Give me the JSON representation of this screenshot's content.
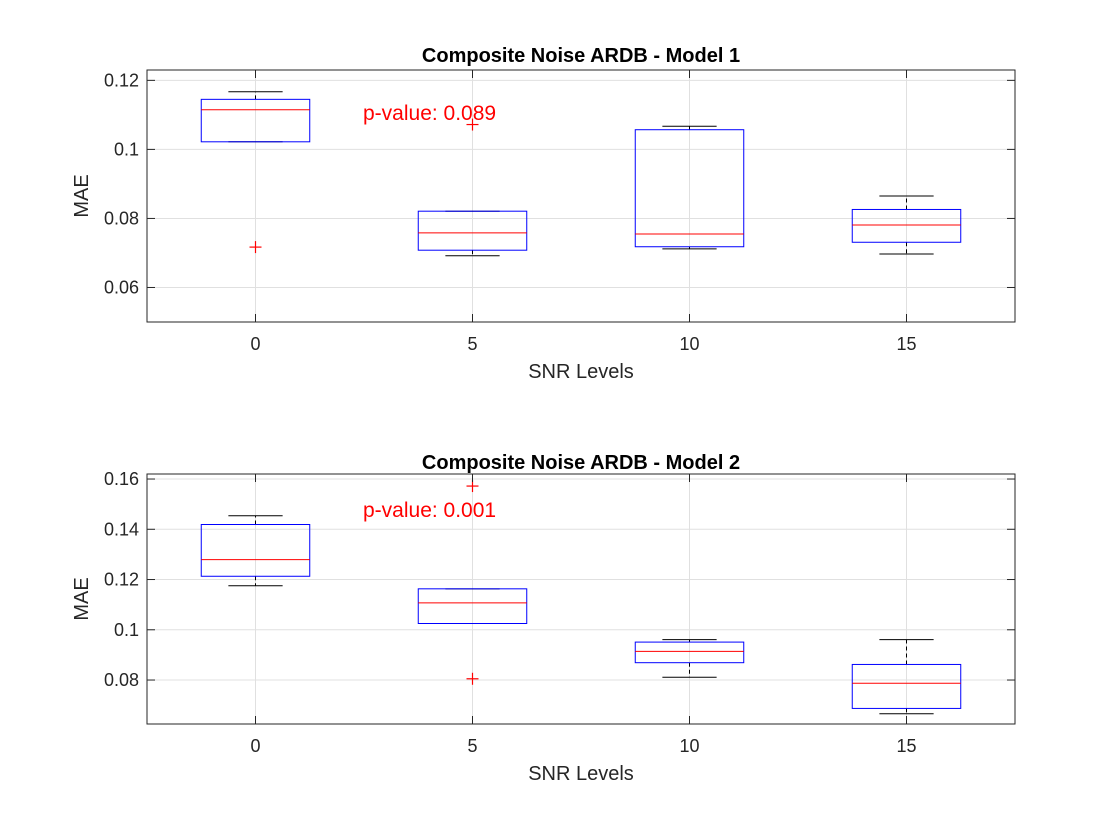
{
  "chart_data": [
    {
      "type": "box",
      "title": "Composite Noise ARDB - Model 1",
      "xlabel": "SNR Levels",
      "ylabel": "MAE",
      "categories": [
        "0",
        "5",
        "10",
        "15"
      ],
      "ylim": [
        0.05,
        0.123
      ],
      "yticks": [
        0.06,
        0.08,
        0.1,
        0.12
      ],
      "ytick_labels": [
        "0.06",
        "0.08",
        "0.1",
        "0.12"
      ],
      "grid": true,
      "annotation": "p-value: 0.089",
      "boxes": [
        {
          "category": "0",
          "whisker_low": 0.1022,
          "q1": 0.1022,
          "median": 0.1115,
          "q3": 0.1145,
          "whisker_high": 0.1167,
          "outliers": [
            0.0717
          ]
        },
        {
          "category": "5",
          "whisker_low": 0.0692,
          "q1": 0.0708,
          "median": 0.0758,
          "q3": 0.0821,
          "whisker_high": 0.0821,
          "outliers": [
            0.1072
          ]
        },
        {
          "category": "10",
          "whisker_low": 0.0712,
          "q1": 0.0718,
          "median": 0.0755,
          "q3": 0.1057,
          "whisker_high": 0.1067,
          "outliers": []
        },
        {
          "category": "15",
          "whisker_low": 0.0697,
          "q1": 0.0731,
          "median": 0.0781,
          "q3": 0.0826,
          "whisker_high": 0.0865,
          "outliers": []
        }
      ]
    },
    {
      "type": "box",
      "title": "Composite Noise ARDB - Model 2",
      "xlabel": "SNR Levels",
      "ylabel": "MAE",
      "categories": [
        "0",
        "5",
        "10",
        "15"
      ],
      "ylim": [
        0.0625,
        0.162
      ],
      "yticks": [
        0.08,
        0.1,
        0.12,
        0.14,
        0.16
      ],
      "ytick_labels": [
        "0.08",
        "0.1",
        "0.12",
        "0.14",
        "0.16"
      ],
      "grid": true,
      "annotation": "p-value: 0.001",
      "boxes": [
        {
          "category": "0",
          "whisker_low": 0.1175,
          "q1": 0.1213,
          "median": 0.1279,
          "q3": 0.1419,
          "whisker_high": 0.1454,
          "outliers": []
        },
        {
          "category": "5",
          "whisker_low": 0.1025,
          "q1": 0.1025,
          "median": 0.1107,
          "q3": 0.1163,
          "whisker_high": 0.1163,
          "outliers": [
            0.0805,
            0.1572
          ]
        },
        {
          "category": "10",
          "whisker_low": 0.0811,
          "q1": 0.0869,
          "median": 0.0914,
          "q3": 0.0951,
          "whisker_high": 0.0961,
          "outliers": []
        },
        {
          "category": "15",
          "whisker_low": 0.0666,
          "q1": 0.0687,
          "median": 0.0787,
          "q3": 0.0862,
          "whisker_high": 0.0961,
          "outliers": []
        }
      ]
    }
  ],
  "colors": {
    "box": "#0000ff",
    "median": "#ff0000",
    "whisker": "#000000",
    "outlier": "#ff0000",
    "annotation": "#ff0000",
    "grid": "#e0e0e0",
    "axes": "#262626"
  }
}
